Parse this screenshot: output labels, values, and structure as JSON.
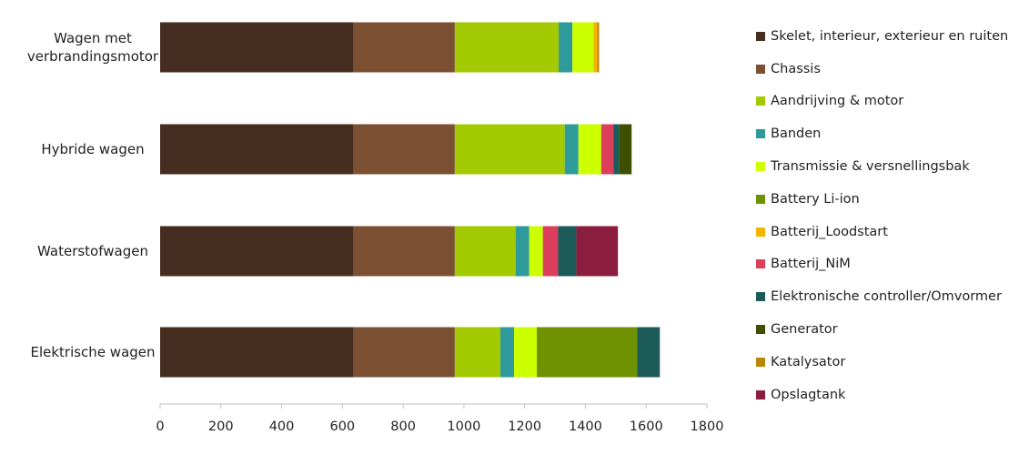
{
  "chart_data": {
    "type": "bar",
    "orientation": "horizontal",
    "stacked": true,
    "categories": [
      [
        "Wagen met",
        "verbrandingsmotor"
      ],
      [
        "Hybride wagen"
      ],
      [
        "Waterstofwagen"
      ],
      [
        "Elektrische wagen"
      ]
    ],
    "xlim": [
      0,
      1800
    ],
    "xticks": [
      "0",
      "200",
      "400",
      "600",
      "800",
      "1000",
      "1200",
      "1400",
      "1600",
      "1800"
    ],
    "legend_position": "right",
    "grid": false,
    "series": [
      {
        "name": "Skelet, interieur, exterieur en ruiten",
        "color": "#452d1f",
        "values": [
          637,
          637,
          637,
          637
        ]
      },
      {
        "name": "Chassis",
        "color": "#7b5033",
        "values": [
          333,
          333,
          333,
          333
        ]
      },
      {
        "name": "Aandrijving & motor",
        "color": "#a3c902",
        "values": [
          342,
          362,
          200,
          150
        ]
      },
      {
        "name": "Banden",
        "color": "#2f9a9a",
        "values": [
          45,
          45,
          45,
          45
        ]
      },
      {
        "name": "Transmissie & versnellingsbak",
        "color": "#ccff00",
        "values": [
          70,
          75,
          45,
          75
        ]
      },
      {
        "name": "Battery Li-ion",
        "color": "#6f9102",
        "values": [
          0,
          0,
          0,
          330
        ]
      },
      {
        "name": "Batterij_Loodstart",
        "color": "#f4b400",
        "values": [
          12,
          0,
          0,
          0
        ]
      },
      {
        "name": "Batterij_NiM",
        "color": "#dc3f5c",
        "values": [
          0,
          40,
          50,
          0
        ]
      },
      {
        "name": "Elektronische controller/Omvormer",
        "color": "#1d5a5a",
        "values": [
          0,
          20,
          60,
          75
        ]
      },
      {
        "name": "Generator",
        "color": "#3c5000",
        "values": [
          0,
          40,
          0,
          0
        ]
      },
      {
        "name": "Katalysator",
        "color": "#b8860b",
        "values": [
          6,
          0,
          0,
          0
        ]
      },
      {
        "name": "Opslagtank",
        "color": "#8b1e3f",
        "values": [
          0,
          0,
          137,
          0
        ]
      }
    ]
  }
}
